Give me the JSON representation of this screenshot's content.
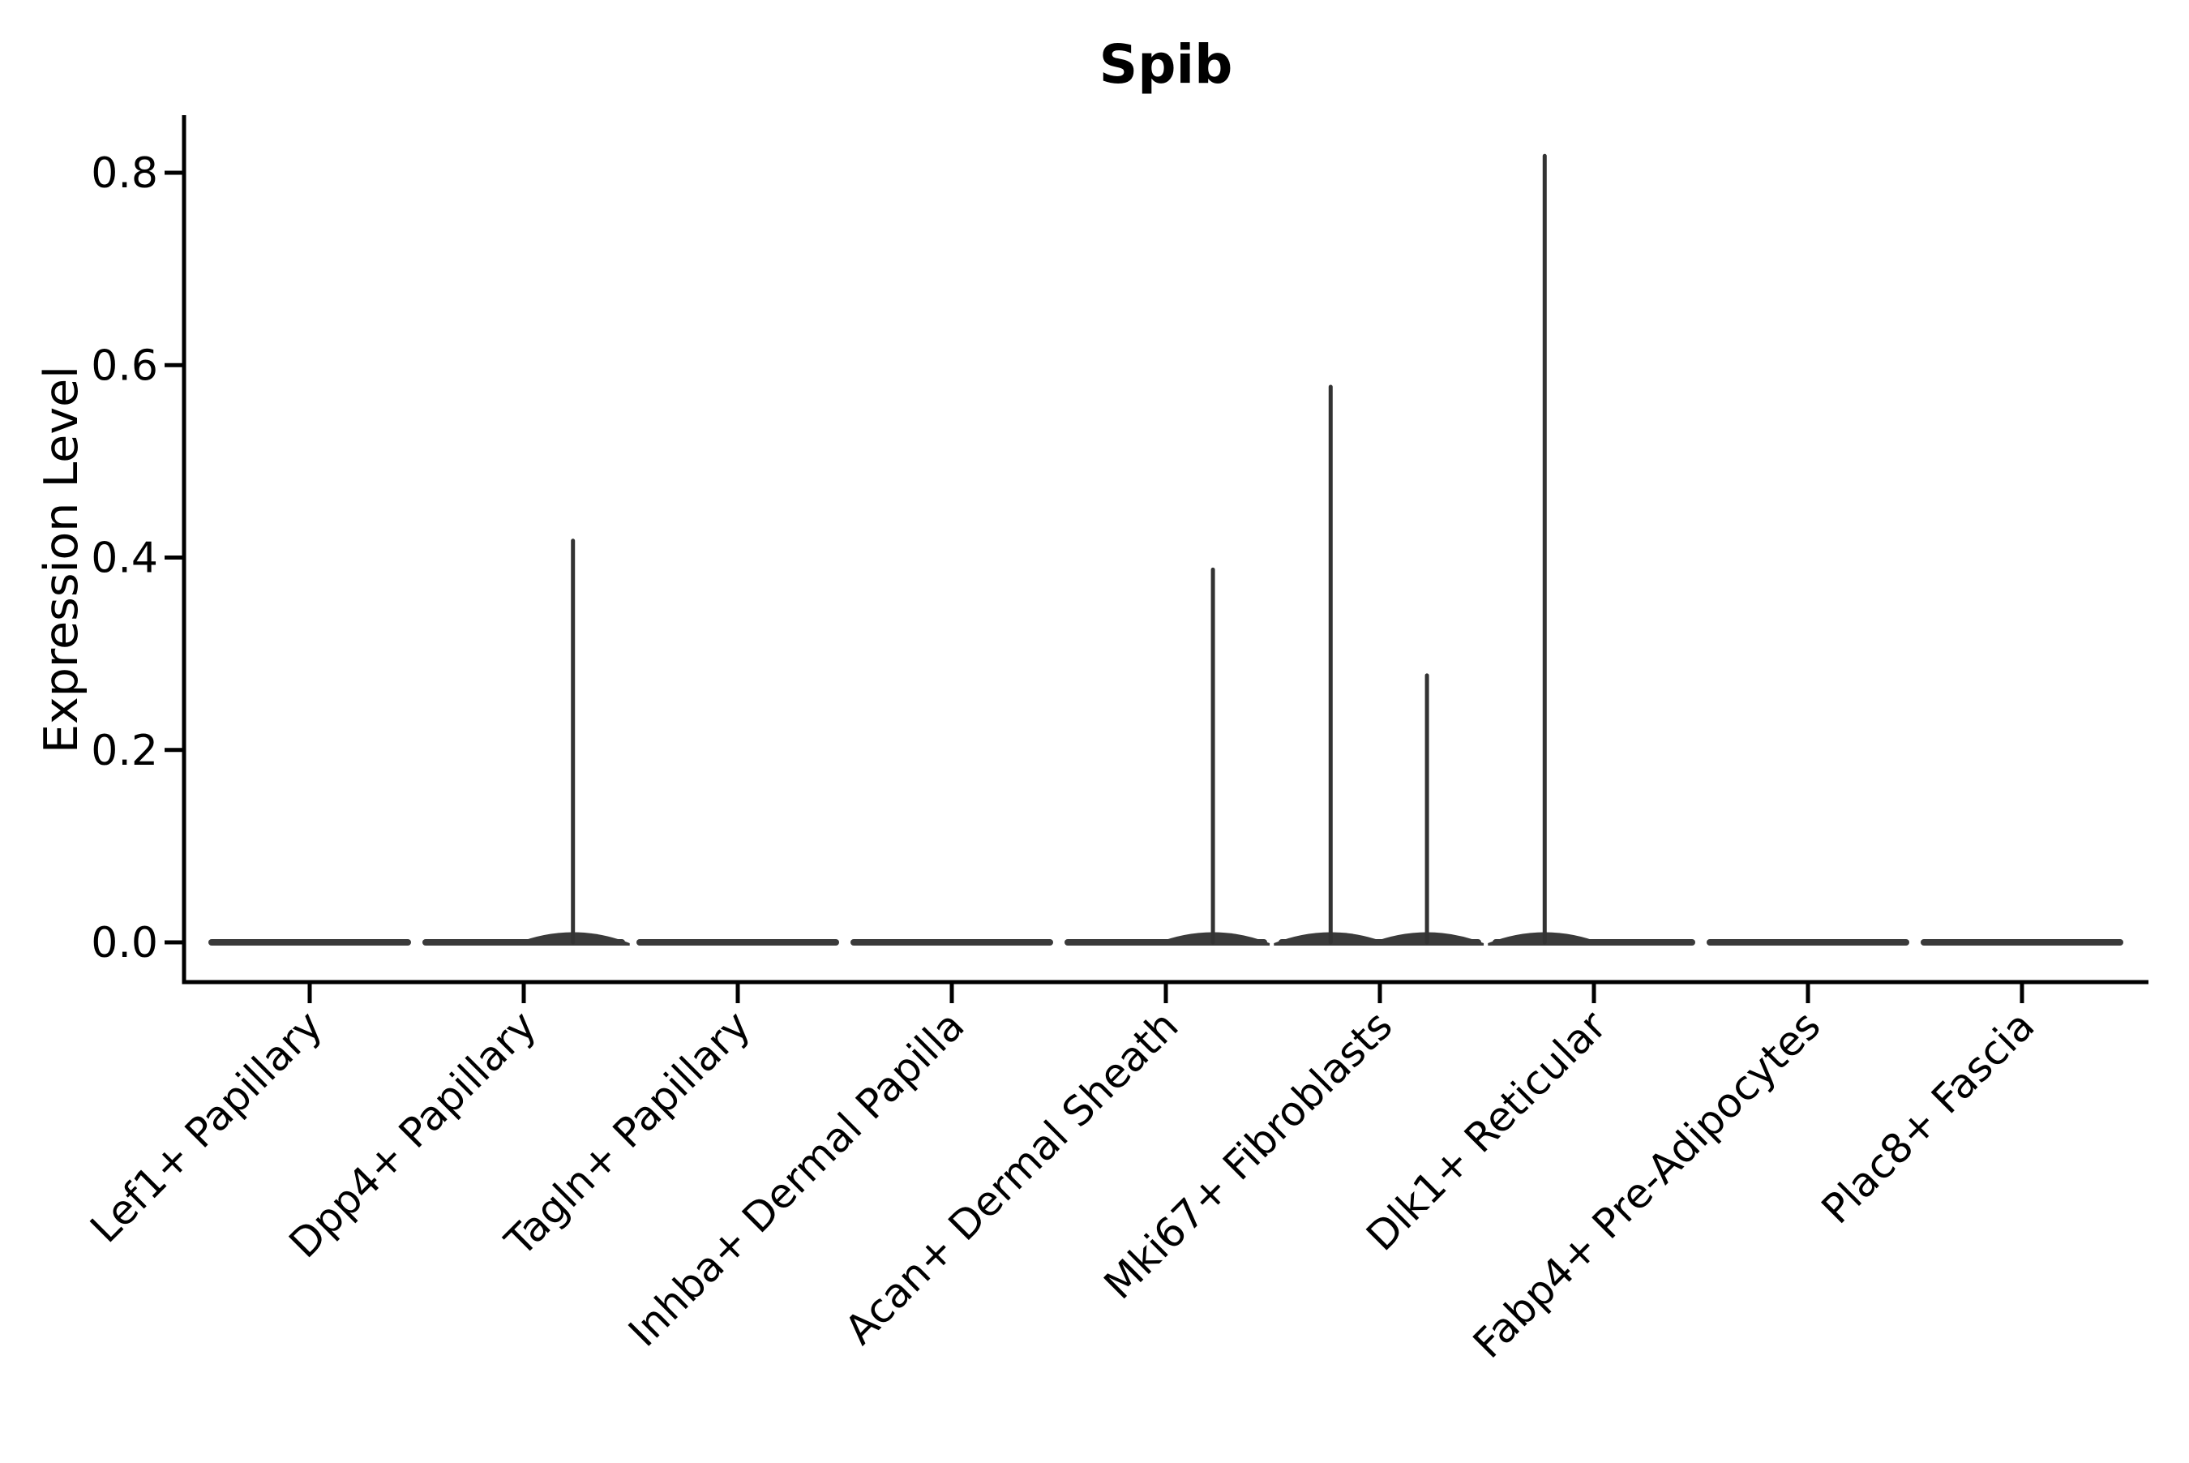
{
  "figure": {
    "title": "Spib",
    "background_color": "#ffffff"
  },
  "chart_data": {
    "type": "violin",
    "title": "Spib",
    "ylabel": "Expression Level",
    "xlabel": "",
    "ylim": [
      0,
      0.86
    ],
    "yticks": [
      0.0,
      0.2,
      0.4,
      0.6,
      0.8
    ],
    "ytick_labels": [
      "0.0",
      "0.2",
      "0.4",
      "0.6",
      "0.8"
    ],
    "grid": false,
    "legend": "none",
    "categories": [
      "Lef1+ Papillary",
      "Dpp4+ Papillary",
      "Tagln+ Papillary",
      "Inhba+ Dermal Papilla",
      "Acan+ Dermal Sheath",
      "Mki67+ Fibroblasts",
      "Dlk1+ Reticular",
      "Fabp4+ Pre-Adipocytes",
      "Plac8+ Fascia"
    ],
    "violins": [
      {
        "category": "Lef1+ Papillary",
        "baseline_value": 0.0,
        "spikes": []
      },
      {
        "category": "Dpp4+ Papillary",
        "baseline_value": 0.0,
        "spikes": [
          {
            "peak_value": 0.42,
            "offset_frac": 0.23
          }
        ]
      },
      {
        "category": "Tagln+ Papillary",
        "baseline_value": 0.0,
        "spikes": []
      },
      {
        "category": "Inhba+ Dermal Papilla",
        "baseline_value": 0.0,
        "spikes": []
      },
      {
        "category": "Acan+ Dermal Sheath",
        "baseline_value": 0.0,
        "spikes": [
          {
            "peak_value": 0.39,
            "offset_frac": 0.22
          }
        ]
      },
      {
        "category": "Mki67+ Fibroblasts",
        "baseline_value": 0.0,
        "spikes": [
          {
            "peak_value": 0.58,
            "offset_frac": -0.23
          },
          {
            "peak_value": 0.28,
            "offset_frac": 0.22
          }
        ]
      },
      {
        "category": "Dlk1+ Reticular",
        "baseline_value": 0.0,
        "spikes": [
          {
            "peak_value": 0.82,
            "offset_frac": -0.23
          }
        ]
      },
      {
        "category": "Fabp4+ Pre-Adipocytes",
        "baseline_value": 0.0,
        "spikes": []
      },
      {
        "category": "Plac8+ Fascia",
        "baseline_value": 0.0,
        "spikes": []
      }
    ],
    "colors": {
      "violin_fill": "#3a3a3a",
      "spike": "#333333",
      "axis": "#000000",
      "text": "#000000"
    }
  }
}
